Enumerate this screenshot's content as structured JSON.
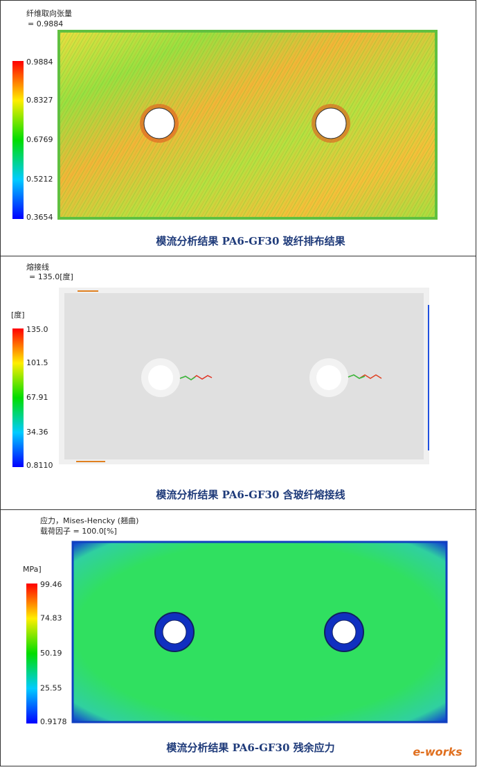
{
  "panels": [
    {
      "header": [
        "纤维取向张量",
        "= 0.9884"
      ],
      "unit": null,
      "legend_labels": [
        "0.9884",
        "0.8327",
        "0.6769",
        "0.5212",
        "0.3654"
      ],
      "caption": "模流分析结果 PA6-GF30 玻纤排布结果"
    },
    {
      "header": [
        "熔接线",
        "= 135.0[度]"
      ],
      "unit": "[度]",
      "legend_labels": [
        "135.0",
        "101.5",
        "67.91",
        "34.36",
        "0.8110"
      ],
      "caption": "模流分析结果 PA6-GF30 含玻纤熔接线"
    },
    {
      "header": [
        "应力，Mises-Hencky (翘曲)",
        "载荷因子 = 100.0[%]"
      ],
      "unit": "MPa]",
      "legend_labels": [
        "99.46",
        "74.83",
        "50.19",
        "25.55",
        "0.9178"
      ],
      "caption": "模流分析结果 PA6-GF30 残余应力"
    }
  ],
  "watermark": "e-works"
}
